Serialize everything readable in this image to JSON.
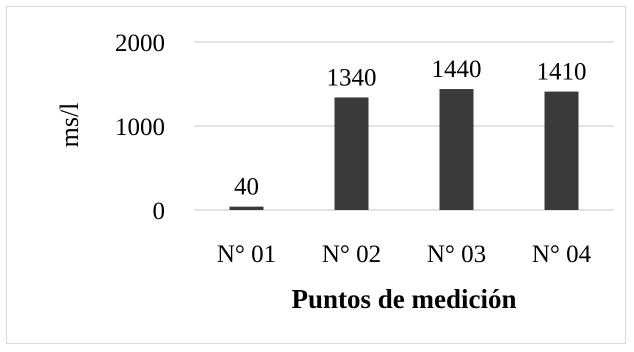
{
  "chart_data": {
    "type": "bar",
    "categories": [
      "N° 01",
      "N° 02",
      "N° 03",
      "N° 04"
    ],
    "values": [
      40,
      1340,
      1440,
      1410
    ],
    "data_labels": [
      "40",
      "1340",
      "1440",
      "1410"
    ],
    "xlabel": "Puntos de medición",
    "ylabel": "ms/l",
    "ylim": [
      0,
      2000
    ],
    "yticks": [
      0,
      1000,
      2000
    ],
    "ytick_labels": [
      "0",
      "1000",
      "2000"
    ],
    "grid": true,
    "legend": "none",
    "colors": {
      "bar": "#3a3a3a",
      "grid": "#d9d9d9",
      "frame": "#d9d9d9",
      "text": "#000000"
    }
  }
}
